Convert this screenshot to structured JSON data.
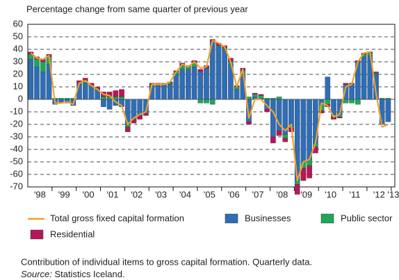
{
  "chart_data": {
    "type": "stacked_bar",
    "title": "Percentage change from same quarter of previous year",
    "categories": [
      "'98",
      null,
      null,
      null,
      "'99",
      null,
      null,
      null,
      "'00",
      null,
      null,
      null,
      "'01",
      null,
      null,
      null,
      "'02",
      null,
      null,
      null,
      "'03",
      null,
      null,
      null,
      "'04",
      null,
      null,
      null,
      "'05",
      null,
      null,
      null,
      "'06",
      null,
      null,
      null,
      "'07",
      null,
      null,
      null,
      "'08",
      null,
      null,
      null,
      "'09",
      null,
      null,
      null,
      "'10",
      null,
      null,
      null,
      "'11",
      null,
      null,
      null,
      "'12",
      null,
      null,
      null,
      "'13"
    ],
    "series": [
      {
        "name": "Businesses",
        "color": "#2f6db5",
        "values": [
          32,
          26,
          22,
          28,
          -4,
          -3,
          -3,
          -5,
          12,
          13,
          10,
          7,
          -6,
          -8,
          -5,
          -6,
          -20,
          -15,
          -12,
          -10,
          11,
          11,
          11,
          12,
          20,
          24,
          24,
          26,
          22,
          25,
          46,
          42,
          40,
          28,
          8,
          20,
          -18,
          2,
          1,
          -8,
          -30,
          -25,
          -28,
          -22,
          -65,
          -50,
          -48,
          -35,
          -4,
          18,
          -12,
          -12,
          12,
          12,
          30,
          34,
          35,
          20,
          -20,
          -18,
          null
        ]
      },
      {
        "name": "Public sector",
        "color": "#1fa65a",
        "values": [
          4,
          6,
          8,
          6,
          1,
          1,
          1,
          1,
          1,
          2,
          1,
          1,
          2,
          2,
          2,
          2,
          -2,
          -1,
          -1,
          -1,
          1,
          1,
          1,
          1,
          2,
          3,
          2,
          3,
          -3,
          -3,
          -4,
          1,
          1,
          2,
          2,
          3,
          2,
          2,
          2,
          1,
          1,
          2,
          -3,
          -1,
          -3,
          -5,
          -5,
          -3,
          -5,
          -4,
          -2,
          -2,
          -3,
          -3,
          -4,
          2,
          2,
          1,
          1,
          1,
          null
        ]
      },
      {
        "name": "Residential",
        "color": "#b5175a",
        "values": [
          2,
          2,
          2,
          2,
          0,
          0,
          0,
          0,
          2,
          2,
          2,
          2,
          4,
          4,
          5,
          6,
          -4,
          -3,
          -3,
          -2,
          1,
          1,
          1,
          1,
          1,
          2,
          1,
          2,
          2,
          2,
          2,
          2,
          2,
          3,
          1,
          2,
          -2,
          1,
          1,
          -2,
          -5,
          -4,
          -3,
          -3,
          -8,
          -10,
          -10,
          -5,
          -2,
          -2,
          -2,
          -1,
          1,
          1,
          1,
          1,
          1,
          1,
          0,
          0,
          null
        ]
      }
    ],
    "line": {
      "name": "Total gross fixed capital formation",
      "color": "#f0a030",
      "values": [
        37,
        33,
        32,
        35,
        -3,
        -3,
        -2,
        -4,
        13,
        15,
        11,
        8,
        4,
        3,
        -2,
        -5,
        -20,
        -15,
        -12,
        -10,
        12,
        12,
        12,
        14,
        22,
        28,
        26,
        30,
        25,
        26,
        47,
        45,
        42,
        30,
        10,
        24,
        -15,
        0,
        0,
        -5,
        -10,
        -20,
        -25,
        -20,
        -65,
        -50,
        -48,
        -35,
        -3,
        -5,
        -14,
        -12,
        10,
        12,
        30,
        37,
        38,
        5,
        -22,
        -20,
        null
      ]
    },
    "ylim": [
      -70,
      60
    ],
    "yticks": [
      -70,
      -60,
      -50,
      -40,
      -30,
      -20,
      -10,
      0,
      10,
      20,
      30,
      40,
      50,
      60
    ],
    "grid": true,
    "caption": "Contribution of individual items to gross capital formation. Quarterly data.",
    "source_label": "Source:",
    "source": "Statistics Iceland."
  }
}
